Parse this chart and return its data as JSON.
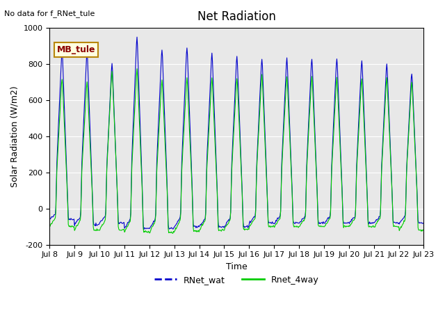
{
  "title": "Net Radiation",
  "xlabel": "Time",
  "ylabel": "Solar Radiation (W/m2)",
  "note": "No data for f_RNet_tule",
  "legend_label": "MB_tule",
  "ylim": [
    -200,
    1000
  ],
  "line1_label": "RNet_wat",
  "line2_label": "Rnet_4way",
  "line1_color": "#0000cc",
  "line2_color": "#00cc00",
  "background_color": "#e8e8e8",
  "yticks": [
    -200,
    0,
    200,
    400,
    600,
    800,
    1000
  ],
  "xtick_labels": [
    "Jul 8",
    "Jul 9",
    "Jul 10",
    "Jul 11",
    "Jul 12",
    "Jul 13",
    "Jul 14",
    "Jul 15",
    "Jul 16",
    "Jul 17",
    "Jul 18",
    "Jul 19",
    "Jul 20",
    "Jul 21",
    "Jul 22",
    "Jul 23"
  ],
  "num_days": 15,
  "daily_peaks_wat": [
    880,
    870,
    800,
    950,
    880,
    890,
    860,
    840,
    830,
    830,
    830,
    830,
    820,
    800,
    750
  ],
  "daily_peaks_4way": [
    720,
    700,
    760,
    770,
    710,
    720,
    720,
    720,
    740,
    730,
    730,
    720,
    720,
    720,
    700
  ],
  "daily_min_wat": [
    -60,
    -90,
    -80,
    -110,
    -110,
    -100,
    -100,
    -100,
    -80,
    -80,
    -80,
    -80,
    -80,
    -80,
    -80
  ],
  "daily_min_4way": [
    -100,
    -120,
    -120,
    -130,
    -135,
    -125,
    -120,
    -115,
    -100,
    -100,
    -100,
    -100,
    -100,
    -100,
    -120
  ]
}
